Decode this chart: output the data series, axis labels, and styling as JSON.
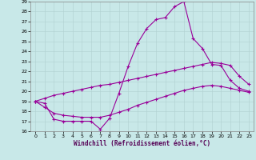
{
  "xlabel": "Windchill (Refroidissement éolien,°C)",
  "background_color": "#c8e8e8",
  "line_color": "#990099",
  "xlim": [
    -0.5,
    23.5
  ],
  "ylim": [
    16,
    29
  ],
  "yticks": [
    16,
    17,
    18,
    19,
    20,
    21,
    22,
    23,
    24,
    25,
    26,
    27,
    28,
    29
  ],
  "xticks": [
    0,
    1,
    2,
    3,
    4,
    5,
    6,
    7,
    8,
    9,
    10,
    11,
    12,
    13,
    14,
    15,
    16,
    17,
    18,
    19,
    20,
    21,
    22,
    23
  ],
  "line1_x": [
    0,
    1,
    2,
    3,
    4,
    5,
    6,
    7,
    8,
    9,
    10,
    11,
    12,
    13,
    14,
    15,
    16,
    17,
    18,
    19,
    20,
    21,
    22,
    23
  ],
  "line1_y": [
    19.0,
    18.8,
    17.2,
    17.0,
    17.0,
    17.0,
    17.0,
    16.2,
    17.3,
    19.8,
    22.5,
    24.8,
    26.3,
    27.2,
    27.4,
    28.5,
    29.0,
    25.3,
    24.3,
    22.7,
    22.6,
    21.1,
    20.3,
    20.0
  ],
  "line2_x": [
    0,
    1,
    2,
    3,
    4,
    5,
    6,
    7,
    8,
    9,
    10,
    11,
    12,
    13,
    14,
    15,
    16,
    17,
    18,
    19,
    20,
    21,
    22,
    23
  ],
  "line2_y": [
    19.0,
    19.3,
    19.6,
    19.8,
    20.0,
    20.2,
    20.4,
    20.6,
    20.7,
    20.9,
    21.1,
    21.3,
    21.5,
    21.7,
    21.9,
    22.1,
    22.3,
    22.5,
    22.7,
    22.9,
    22.8,
    22.6,
    21.5,
    20.7
  ],
  "line3_x": [
    0,
    1,
    2,
    3,
    4,
    5,
    6,
    7,
    8,
    9,
    10,
    11,
    12,
    13,
    14,
    15,
    16,
    17,
    18,
    19,
    20,
    21,
    22,
    23
  ],
  "line3_y": [
    19.0,
    18.4,
    17.8,
    17.6,
    17.5,
    17.4,
    17.4,
    17.4,
    17.6,
    17.9,
    18.2,
    18.6,
    18.9,
    19.2,
    19.5,
    19.8,
    20.1,
    20.3,
    20.5,
    20.6,
    20.5,
    20.3,
    20.1,
    19.9
  ]
}
